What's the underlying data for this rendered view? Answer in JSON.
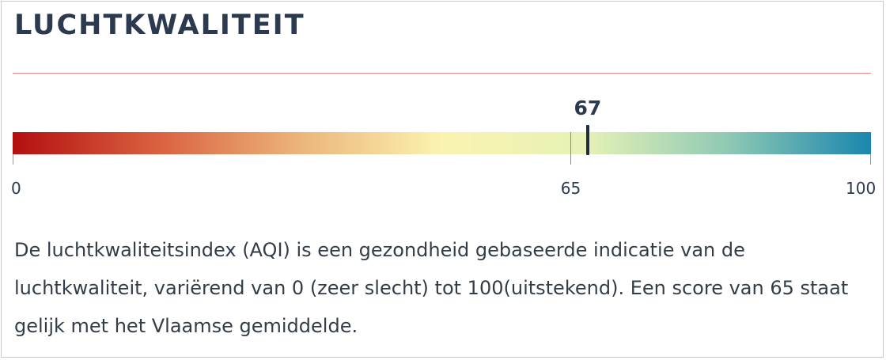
{
  "widget": {
    "title": "LUCHTKWALITEIT",
    "score": 67,
    "score_label": "67",
    "scale": {
      "min": 0,
      "max": 100,
      "average": 65,
      "tick_labels": [
        "0",
        "65",
        "100"
      ],
      "gradient_colors": [
        "#b40f10",
        "#d9603f",
        "#ecb47a",
        "#fbf3b0",
        "#e6f2b6",
        "#8fc9b4",
        "#1a86ae"
      ]
    },
    "description": "De luchtkwaliteitsindex (AQI) is een gezondheid gebaseerde indicatie van de luchtkwaliteit, variërend van 0 (zeer slecht) tot 100(uitstekend). Een score van 65 staat gelijk met het Vlaamse gemiddelde.",
    "colors": {
      "title": "#2b3a4e",
      "divider": "#e88a8a",
      "marker": "#1f2d3d"
    }
  }
}
